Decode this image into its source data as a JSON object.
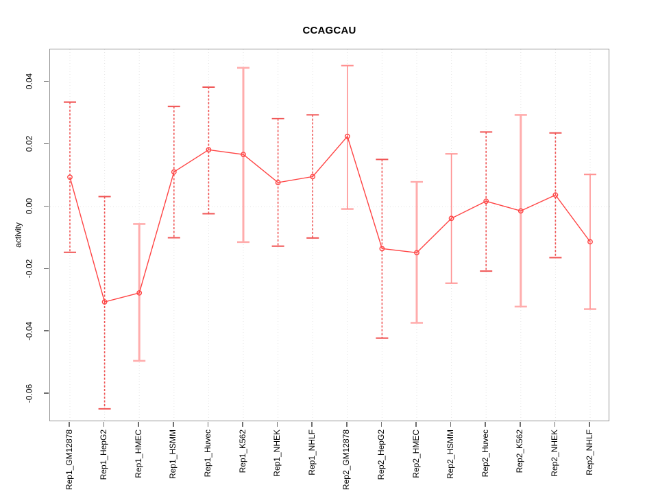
{
  "chart_data": {
    "type": "line",
    "title": "CCAGCAU",
    "ylabel": "activity",
    "xlabel": "",
    "categories": [
      "Rep1_GM12878",
      "Rep1_HepG2",
      "Rep1_HMEC",
      "Rep1_HSMM",
      "Rep1_Huvec",
      "Rep1_K562",
      "Rep1_NHEK",
      "Rep1_NHLF",
      "Rep2_GM12878",
      "Rep2_HepG2",
      "Rep2_HMEC",
      "Rep2_HSMM",
      "Rep2_Huvec",
      "Rep2_K562",
      "Rep2_NHEK",
      "Rep2_NHLF"
    ],
    "series": [
      {
        "name": "activity",
        "values": [
          0.0095,
          -0.0305,
          -0.0276,
          0.0112,
          0.0183,
          0.0168,
          0.0078,
          0.0097,
          0.0226,
          -0.0134,
          -0.0147,
          -0.0037,
          0.0018,
          -0.0013,
          0.0038,
          -0.0112
        ],
        "error_upper": [
          0.0336,
          0.0033,
          -0.0055,
          0.0322,
          0.0384,
          0.0446,
          0.0283,
          0.0295,
          0.0453,
          0.0152,
          0.008,
          0.017,
          0.024,
          0.0295,
          0.0237,
          0.0104
        ],
        "error_lower": [
          -0.0146,
          -0.0648,
          -0.0494,
          -0.0099,
          -0.0022,
          -0.0113,
          -0.0126,
          -0.01,
          -0.0007,
          -0.0421,
          -0.0372,
          -0.0245,
          -0.0206,
          -0.032,
          -0.0163,
          -0.0328
        ]
      }
    ],
    "error_bar_styles": [
      "dashed",
      "dashed",
      "thick",
      "dashed",
      "dashed",
      "thick",
      "dashed",
      "dashed",
      "thin",
      "dashed",
      "thick",
      "thin",
      "dashed",
      "thick",
      "dashed",
      "thin"
    ],
    "ylim": [
      -0.069,
      0.0505
    ],
    "yticks": [
      0.04,
      0.02,
      0.0,
      -0.02,
      -0.04,
      -0.06
    ],
    "ytick_labels": [
      "0.04",
      "0.02",
      "0.00",
      "-0.02",
      "-0.04",
      "-0.06"
    ],
    "grid": {
      "vertical_gridlines": true,
      "zero_line": true,
      "legend": "none"
    },
    "colors": {
      "series_line": "#ff4343",
      "marker_stroke": "#ff4343",
      "errorbar_dashed": "#f05555",
      "errorbar_thick": "#ffacac",
      "errorbar_thin": "#ff9090",
      "gridline": "#e3e3e3",
      "axis_box": "#949494",
      "tick_mark": "#6e6e6e"
    }
  }
}
